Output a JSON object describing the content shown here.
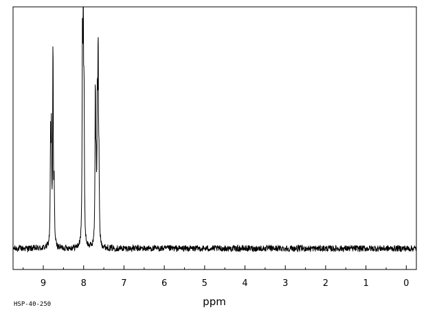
{
  "chart_data": {
    "type": "line",
    "title": "",
    "xlabel": "ppm",
    "ylabel": "",
    "xlim": [
      9.75,
      -0.25
    ],
    "x_reversed": true,
    "ylim": [
      0,
      1
    ],
    "grid": false,
    "x_ticks": [
      9,
      8,
      7,
      6,
      5,
      4,
      3,
      2,
      1,
      0
    ],
    "tick_labels": [
      "9",
      "8",
      "7",
      "6",
      "5",
      "4",
      "3",
      "2",
      "1",
      "0"
    ],
    "baseline": 0.08,
    "noise": 0.012,
    "peaks": [
      {
        "x": 8.82,
        "height": 0.48
      },
      {
        "x": 8.8,
        "height": 0.49
      },
      {
        "x": 8.76,
        "height": 0.86
      },
      {
        "x": 8.73,
        "height": 0.3
      },
      {
        "x": 8.03,
        "height": 0.8
      },
      {
        "x": 8.01,
        "height": 0.98
      },
      {
        "x": 7.99,
        "height": 0.6
      },
      {
        "x": 7.71,
        "height": 0.68
      },
      {
        "x": 7.69,
        "height": 0.33
      },
      {
        "x": 7.66,
        "height": 0.6
      },
      {
        "x": 7.64,
        "height": 0.78
      },
      {
        "x": 7.62,
        "height": 0.35
      }
    ],
    "line_color": "#000000"
  },
  "sample_code": "HSP-40-250"
}
